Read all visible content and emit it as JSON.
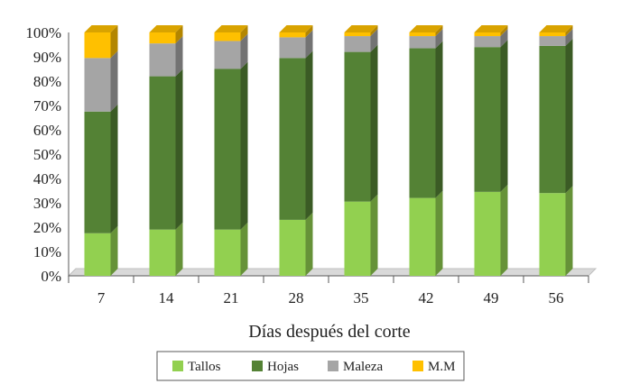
{
  "chart_data": {
    "type": "bar",
    "stacked": true,
    "percent": true,
    "three_d": true,
    "title": "",
    "xlabel": "Días después del corte",
    "ylabel": "",
    "categories": [
      "7",
      "14",
      "21",
      "28",
      "35",
      "42",
      "49",
      "56"
    ],
    "ylim": [
      0,
      100
    ],
    "yticks": [
      "0%",
      "10%",
      "20%",
      "30%",
      "40%",
      "50%",
      "60%",
      "70%",
      "80%",
      "90%",
      "100%"
    ],
    "series": [
      {
        "name": "Tallos",
        "color": "#92d050",
        "values": [
          17.5,
          19,
          19,
          23,
          30.5,
          32,
          34.5,
          34
        ]
      },
      {
        "name": "Hojas",
        "color": "#548235",
        "values": [
          50,
          63,
          66,
          66.5,
          61.5,
          61.5,
          59.5,
          60.5
        ]
      },
      {
        "name": "Maleza",
        "color": "#a5a5a5",
        "values": [
          22,
          13.5,
          11.5,
          8.5,
          6.5,
          5,
          4.5,
          4
        ]
      },
      {
        "name": "M.M",
        "color": "#ffc000",
        "values": [
          10.5,
          4.5,
          3.5,
          2,
          1.5,
          1.5,
          1.5,
          1.5
        ]
      }
    ],
    "legend_position": "bottom"
  }
}
